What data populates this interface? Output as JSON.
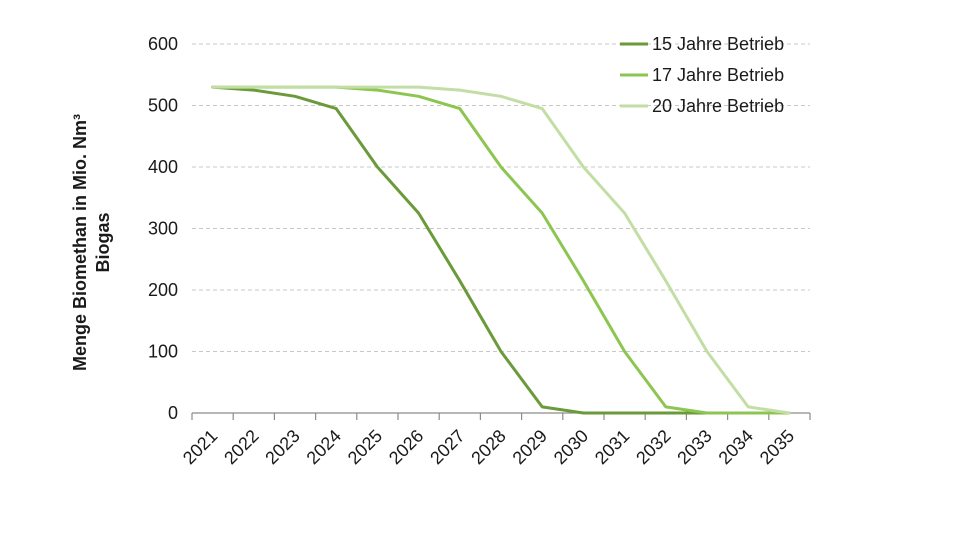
{
  "chart_data": {
    "type": "line",
    "title": "",
    "ylabel_lines": [
      "Menge Biomethan in Mio. Nm³",
      "Biogas"
    ],
    "xlabel": "",
    "categories": [
      "2021",
      "2022",
      "2023",
      "2024",
      "2025",
      "2026",
      "2027",
      "2028",
      "2029",
      "2030",
      "2031",
      "2032",
      "2033",
      "2034",
      "2035"
    ],
    "ylim": [
      0,
      600
    ],
    "yticks": [
      0,
      100,
      200,
      300,
      400,
      500,
      600
    ],
    "grid": true,
    "legend_position": "top-right",
    "series": [
      {
        "name": "15 Jahre Betrieb",
        "color": "#6a9a3a",
        "values": [
          530,
          525,
          515,
          495,
          400,
          325,
          215,
          100,
          10,
          0,
          0,
          0,
          0,
          0,
          0
        ]
      },
      {
        "name": "17 Jahre Betrieb",
        "color": "#8cc650",
        "values": [
          530,
          530,
          530,
          530,
          525,
          515,
          495,
          400,
          325,
          215,
          100,
          10,
          0,
          0,
          0
        ]
      },
      {
        "name": "20 Jahre Betrieb",
        "color": "#c3dea5",
        "values": [
          530,
          530,
          530,
          530,
          530,
          530,
          525,
          515,
          495,
          400,
          325,
          215,
          100,
          10,
          0
        ]
      }
    ]
  }
}
